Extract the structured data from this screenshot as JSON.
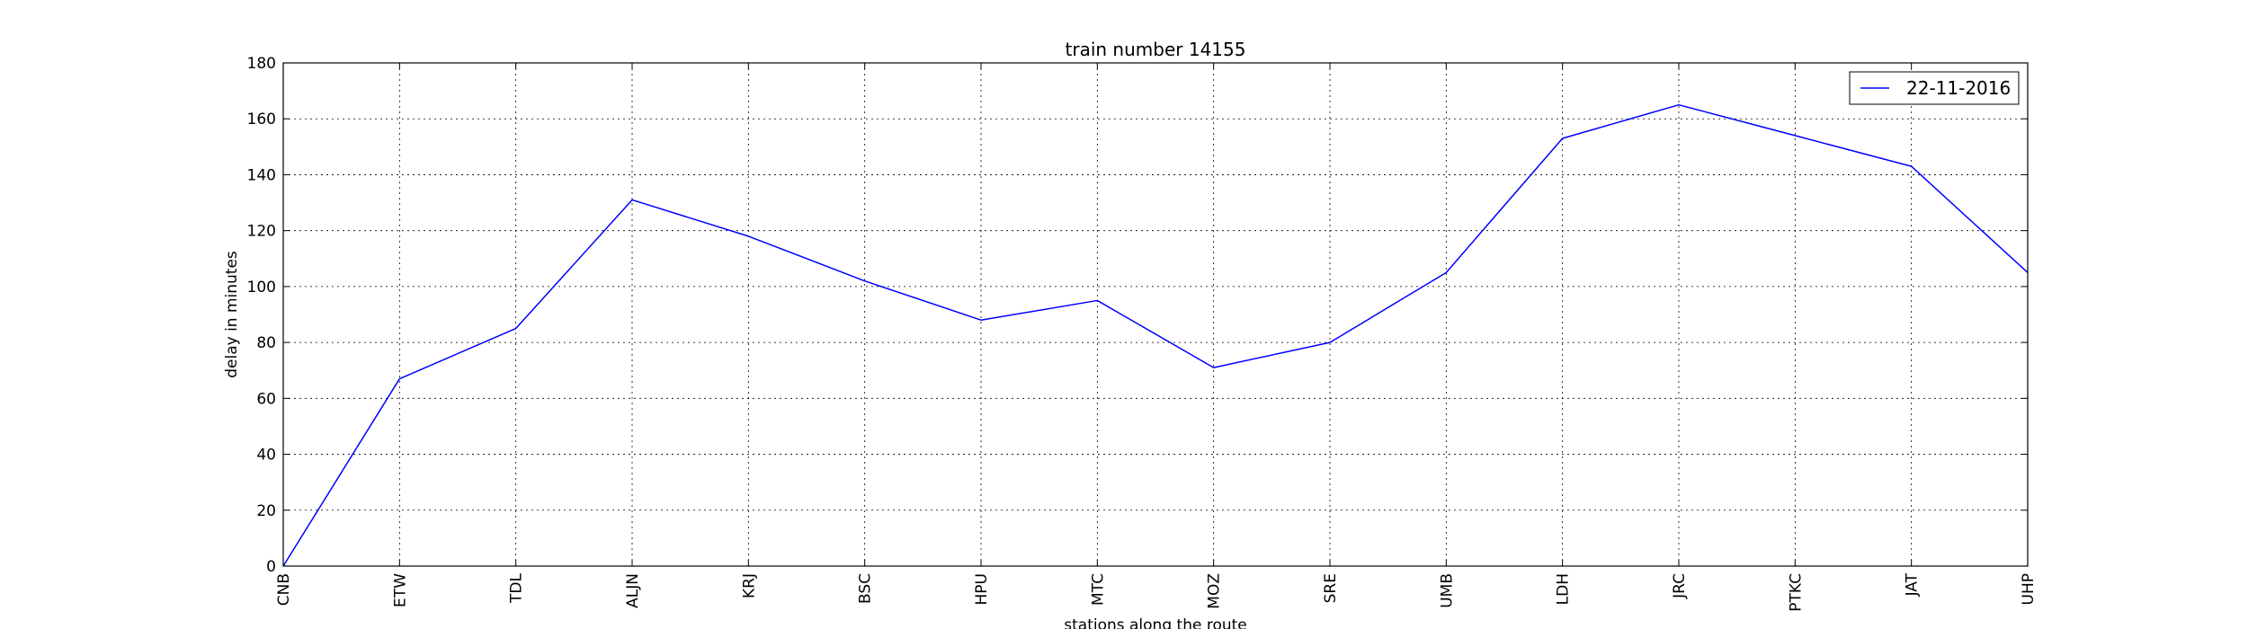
{
  "chart_data": {
    "type": "line",
    "title": "train number 14155",
    "xlabel": "stations along the route",
    "ylabel": "delay in minutes",
    "categories": [
      "CNB",
      "ETW",
      "TDL",
      "ALJN",
      "KRJ",
      "BSC",
      "HPU",
      "MTC",
      "MOZ",
      "SRE",
      "UMB",
      "LDH",
      "JRC",
      "PTKC",
      "JAT",
      "UHP"
    ],
    "series": [
      {
        "name": "22-11-2016",
        "color": "#0000ff",
        "values": [
          0,
          67,
          85,
          131,
          118,
          102,
          88,
          95,
          71,
          80,
          105,
          153,
          165,
          154,
          143,
          105
        ]
      }
    ],
    "ylim": [
      0,
      180
    ],
    "yticks": [
      0,
      20,
      40,
      60,
      80,
      100,
      120,
      140,
      160,
      180
    ],
    "grid": true,
    "legend_position": "top-right"
  }
}
